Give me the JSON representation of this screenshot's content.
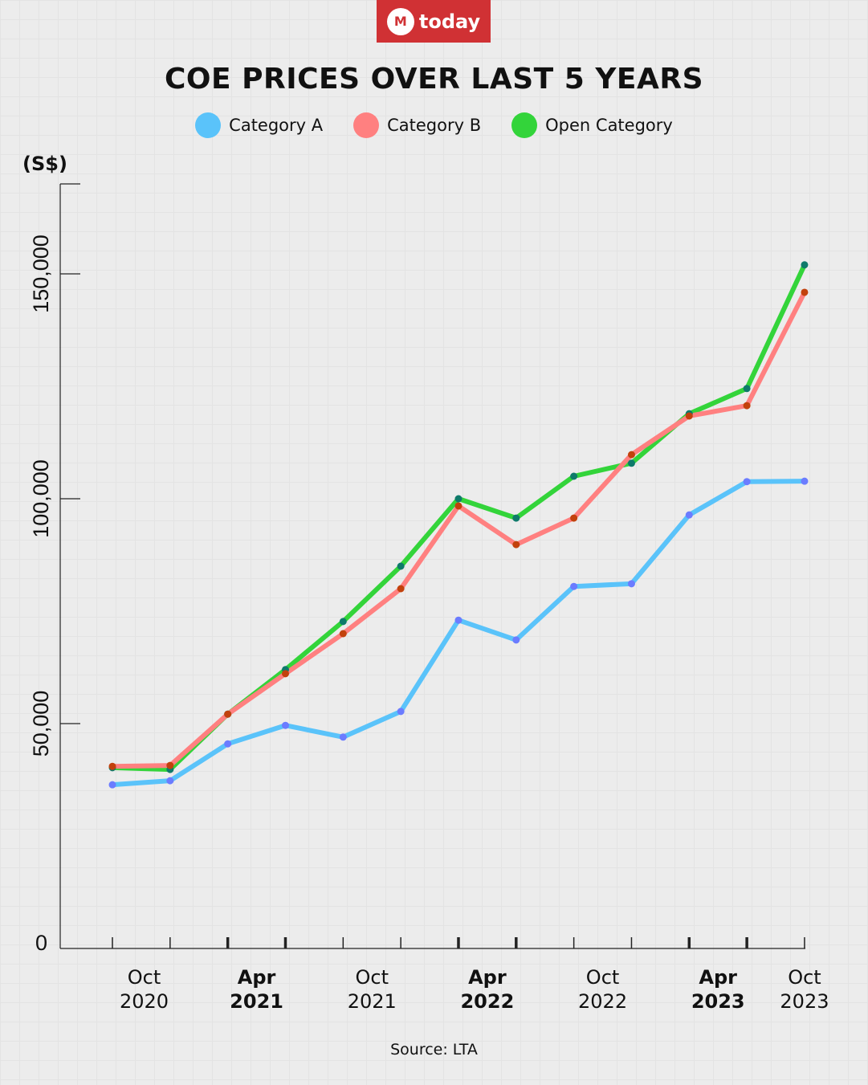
{
  "brand": {
    "logo_text": "today",
    "logo_mark": "M"
  },
  "chart_data": {
    "type": "line",
    "title": "COE PRICES OVER LAST 5 YEARS",
    "ylabel": "(S$)",
    "ylim": [
      0,
      170000
    ],
    "yticks": [
      {
        "value": 0,
        "label": "0"
      },
      {
        "value": 50000,
        "label": "50,000"
      },
      {
        "value": 100000,
        "label": "100,000"
      },
      {
        "value": 150000,
        "label": "150,000"
      }
    ],
    "x_points": 13,
    "xtick_labels": [
      {
        "index": 0.55,
        "line1": "Oct",
        "line2": "2020",
        "bold": false
      },
      {
        "index": 2.5,
        "line1": "Apr",
        "line2": "2021",
        "bold": true
      },
      {
        "index": 4.5,
        "line1": "Oct",
        "line2": "2021",
        "bold": false
      },
      {
        "index": 6.5,
        "line1": "Apr",
        "line2": "2022",
        "bold": true
      },
      {
        "index": 8.5,
        "line1": "Oct",
        "line2": "2022",
        "bold": false
      },
      {
        "index": 10.5,
        "line1": "Apr",
        "line2": "2023",
        "bold": true
      },
      {
        "index": 12,
        "line1": "Oct",
        "line2": "2023",
        "bold": false
      }
    ],
    "bold_ticks": [
      2,
      3,
      6,
      7,
      10,
      11
    ],
    "legend_position": "top-center",
    "series": [
      {
        "name": "Open Category",
        "color": "#33d43a",
        "point_color": "#0e7a6a",
        "values": [
          40200,
          39800,
          52100,
          62000,
          72700,
          85000,
          100000,
          95700,
          105000,
          107900,
          118900,
          124500,
          152000
        ]
      },
      {
        "name": "Category B",
        "color": "#ff8080",
        "point_color": "#c2410c",
        "values": [
          40500,
          40700,
          52100,
          61100,
          70000,
          80000,
          98400,
          89800,
          95700,
          109800,
          118400,
          120700,
          145900
        ]
      },
      {
        "name": "Category A",
        "color": "#5ac3fa",
        "point_color": "#6b7cff",
        "values": [
          36400,
          37300,
          45500,
          49600,
          47000,
          52700,
          73000,
          68600,
          80500,
          81100,
          96400,
          103800,
          103900
        ]
      }
    ],
    "legend": [
      {
        "name": "Category A",
        "color": "#5ac3fa"
      },
      {
        "name": "Category B",
        "color": "#ff8080"
      },
      {
        "name": "Open Category",
        "color": "#33d43a"
      }
    ],
    "source": "Source: LTA"
  }
}
